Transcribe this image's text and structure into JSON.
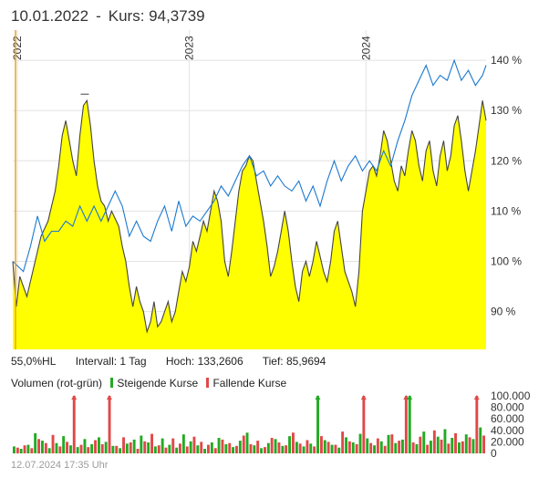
{
  "header": {
    "date": "10.01.2022",
    "separator": "-",
    "kurs_label": "Kurs: 94,3739"
  },
  "stats": {
    "hl": "55,0%HL",
    "intervall": "Intervall: 1 Tag",
    "hoch": "Hoch: 133,2606",
    "tief": "Tief: 85,9694"
  },
  "volume_legend": {
    "title": "Volumen (rot-grün)",
    "rising": "Steigende Kurse",
    "falling": "Fallende Kurse"
  },
  "footer": {
    "timestamp": "12.07.2024 17:35 Uhr"
  },
  "colors": {
    "price_line": "#444444",
    "price_fill": "#ffff00",
    "benchmark_line": "#1a78d0",
    "volume_up": "#22aa22",
    "volume_down": "#e04848",
    "cursor_line": "#f0a020",
    "grid": "#e2e2e2"
  },
  "chart_data": [
    {
      "type": "area",
      "x_labels": [
        "2022",
        "2023",
        "2024"
      ],
      "y_axis": {
        "unit": "%",
        "ticks": [
          90,
          100,
          110,
          120,
          130,
          140
        ],
        "tick_labels": [
          "90 %",
          "100 %",
          "110 %",
          "120 %",
          "130 %",
          "140 %"
        ],
        "ylim": [
          82.5,
          146
        ]
      },
      "series": [
        {
          "role": "price",
          "values": [
            [
              0,
              100
            ],
            [
              1,
              91
            ],
            [
              2,
              97
            ],
            [
              4,
              93
            ],
            [
              6,
              99
            ],
            [
              8,
              105
            ],
            [
              10,
              108
            ],
            [
              12,
              114
            ],
            [
              13,
              119
            ],
            [
              14,
              125
            ],
            [
              15,
              128
            ],
            [
              16,
              124
            ],
            [
              17,
              120
            ],
            [
              18,
              117
            ],
            [
              19,
              125
            ],
            [
              20,
              131
            ],
            [
              21,
              132
            ],
            [
              22,
              127
            ],
            [
              23,
              120
            ],
            [
              24,
              115
            ],
            [
              25,
              112
            ],
            [
              26,
              111
            ],
            [
              27,
              108
            ],
            [
              28,
              110
            ],
            [
              30,
              107
            ],
            [
              31,
              103
            ],
            [
              32,
              100
            ],
            [
              33,
              95
            ],
            [
              34,
              91
            ],
            [
              35,
              95
            ],
            [
              36,
              92
            ],
            [
              37,
              90
            ],
            [
              38,
              86
            ],
            [
              39,
              88
            ],
            [
              40,
              92
            ],
            [
              41,
              87
            ],
            [
              42,
              88
            ],
            [
              43,
              90
            ],
            [
              44,
              92
            ],
            [
              45,
              88
            ],
            [
              46,
              90
            ],
            [
              47,
              94
            ],
            [
              48,
              98
            ],
            [
              49,
              96
            ],
            [
              50,
              99
            ],
            [
              51,
              104
            ],
            [
              52,
              102
            ],
            [
              53,
              105
            ],
            [
              54,
              108
            ],
            [
              55,
              106
            ],
            [
              56,
              110
            ],
            [
              57,
              114
            ],
            [
              58,
              112
            ],
            [
              59,
              108
            ],
            [
              60,
              100
            ],
            [
              61,
              97
            ],
            [
              62,
              102
            ],
            [
              63,
              108
            ],
            [
              64,
              114
            ],
            [
              65,
              118
            ],
            [
              66,
              119
            ],
            [
              67,
              121
            ],
            [
              68,
              120
            ],
            [
              69,
              116
            ],
            [
              70,
              112
            ],
            [
              71,
              108
            ],
            [
              72,
              103
            ],
            [
              73,
              97
            ],
            [
              74,
              99
            ],
            [
              75,
              102
            ],
            [
              76,
              106
            ],
            [
              77,
              110
            ],
            [
              78,
              106
            ],
            [
              79,
              100
            ],
            [
              80,
              95
            ],
            [
              81,
              92
            ],
            [
              82,
              98
            ],
            [
              83,
              100
            ],
            [
              84,
              97
            ],
            [
              85,
              100
            ],
            [
              86,
              104
            ],
            [
              87,
              101
            ],
            [
              88,
              98
            ],
            [
              89,
              96
            ],
            [
              90,
              100
            ],
            [
              91,
              106
            ],
            [
              92,
              108
            ],
            [
              93,
              103
            ],
            [
              94,
              98
            ],
            [
              95,
              96
            ],
            [
              96,
              94
            ],
            [
              97,
              91
            ],
            [
              98,
              98
            ],
            [
              99,
              110
            ],
            [
              100,
              114
            ],
            [
              101,
              118
            ],
            [
              102,
              119
            ],
            [
              103,
              117
            ],
            [
              104,
              121
            ],
            [
              105,
              126
            ],
            [
              106,
              124
            ],
            [
              107,
              120
            ],
            [
              108,
              116
            ],
            [
              109,
              114
            ],
            [
              110,
              119
            ],
            [
              111,
              117
            ],
            [
              112,
              122
            ],
            [
              113,
              126
            ],
            [
              114,
              124
            ],
            [
              115,
              119
            ],
            [
              116,
              116
            ],
            [
              117,
              122
            ],
            [
              118,
              124
            ],
            [
              119,
              118
            ],
            [
              120,
              115
            ],
            [
              121,
              121
            ],
            [
              122,
              124
            ],
            [
              123,
              118
            ],
            [
              124,
              121
            ],
            [
              125,
              127
            ],
            [
              126,
              129
            ],
            [
              127,
              124
            ],
            [
              128,
              118
            ],
            [
              129,
              114
            ],
            [
              130,
              118
            ],
            [
              131,
              122
            ],
            [
              132,
              127
            ],
            [
              133,
              132
            ],
            [
              134,
              128
            ]
          ]
        },
        {
          "role": "benchmark",
          "values": [
            [
              0,
              100
            ],
            [
              3,
              98
            ],
            [
              5,
              103
            ],
            [
              7,
              109
            ],
            [
              9,
              104
            ],
            [
              11,
              106
            ],
            [
              13,
              106
            ],
            [
              15,
              108
            ],
            [
              17,
              107
            ],
            [
              19,
              111
            ],
            [
              21,
              108
            ],
            [
              23,
              111
            ],
            [
              25,
              108
            ],
            [
              27,
              111
            ],
            [
              29,
              114
            ],
            [
              31,
              111
            ],
            [
              33,
              105
            ],
            [
              35,
              108
            ],
            [
              37,
              105
            ],
            [
              39,
              104
            ],
            [
              41,
              108
            ],
            [
              43,
              111
            ],
            [
              45,
              106
            ],
            [
              47,
              112
            ],
            [
              49,
              107
            ],
            [
              51,
              109
            ],
            [
              53,
              108
            ],
            [
              55,
              110
            ],
            [
              57,
              112
            ],
            [
              59,
              115
            ],
            [
              61,
              113
            ],
            [
              63,
              116
            ],
            [
              65,
              119
            ],
            [
              67,
              121
            ],
            [
              69,
              117
            ],
            [
              71,
              118
            ],
            [
              73,
              115
            ],
            [
              75,
              117
            ],
            [
              77,
              115
            ],
            [
              79,
              114
            ],
            [
              81,
              116
            ],
            [
              83,
              112
            ],
            [
              85,
              115
            ],
            [
              87,
              111
            ],
            [
              89,
              116
            ],
            [
              91,
              120
            ],
            [
              93,
              116
            ],
            [
              95,
              119
            ],
            [
              97,
              121
            ],
            [
              99,
              118
            ],
            [
              101,
              120
            ],
            [
              103,
              118
            ],
            [
              105,
              122
            ],
            [
              107,
              119
            ],
            [
              109,
              124
            ],
            [
              111,
              128
            ],
            [
              113,
              133
            ],
            [
              115,
              136
            ],
            [
              117,
              139
            ],
            [
              119,
              135
            ],
            [
              121,
              137
            ],
            [
              123,
              136
            ],
            [
              125,
              140
            ],
            [
              127,
              136
            ],
            [
              129,
              138
            ],
            [
              131,
              135
            ],
            [
              133,
              137
            ],
            [
              134,
              139
            ]
          ]
        }
      ]
    },
    {
      "type": "bar",
      "title": "Volumen (rot-grün)",
      "y_axis": {
        "ticks": [
          0,
          20000,
          40000,
          60000,
          80000,
          100000
        ],
        "tick_labels": [
          "0",
          "20.000",
          "40.000",
          "60.000",
          "80.000",
          "100.000"
        ]
      },
      "series": [
        {
          "name": "Steigende Kurse",
          "values": [
            12000,
            8000,
            15000,
            35000,
            22000,
            9000,
            18000,
            30000,
            14000,
            11000,
            25000,
            16000,
            28000,
            20000,
            13000,
            9000,
            17000,
            24000,
            31000,
            19000,
            12000,
            26000,
            15000,
            10000,
            33000,
            21000,
            14000,
            8000,
            19000,
            27000,
            16000,
            11000,
            22000,
            36000,
            14000,
            9000,
            18000,
            25000,
            13000,
            30000,
            20000,
            12000,
            17000,
            105000,
            23000,
            15000,
            10000,
            28000,
            19000,
            34000,
            26000,
            14000,
            21000,
            32000,
            18000,
            24000,
            105000,
            16000,
            38000,
            22000,
            29000,
            42000,
            27000,
            19000,
            33000,
            25000,
            45000
          ]
        },
        {
          "name": "Fallende Kurse",
          "values": [
            10000,
            14000,
            9000,
            25000,
            18000,
            32000,
            12000,
            20000,
            100000,
            15000,
            11000,
            23000,
            16000,
            100000,
            13000,
            28000,
            19000,
            8000,
            21000,
            34000,
            14000,
            10000,
            26000,
            17000,
            12000,
            29000,
            20000,
            15000,
            9000,
            24000,
            18000,
            13000,
            31000,
            16000,
            22000,
            11000,
            27000,
            19000,
            14000,
            36000,
            17000,
            23000,
            12000,
            30000,
            20000,
            15000,
            38000,
            21000,
            16000,
            100000,
            18000,
            26000,
            13000,
            33000,
            22000,
            100000,
            19000,
            29000,
            15000,
            40000,
            24000,
            17000,
            35000,
            21000,
            28000,
            100000,
            31000
          ]
        }
      ]
    }
  ]
}
